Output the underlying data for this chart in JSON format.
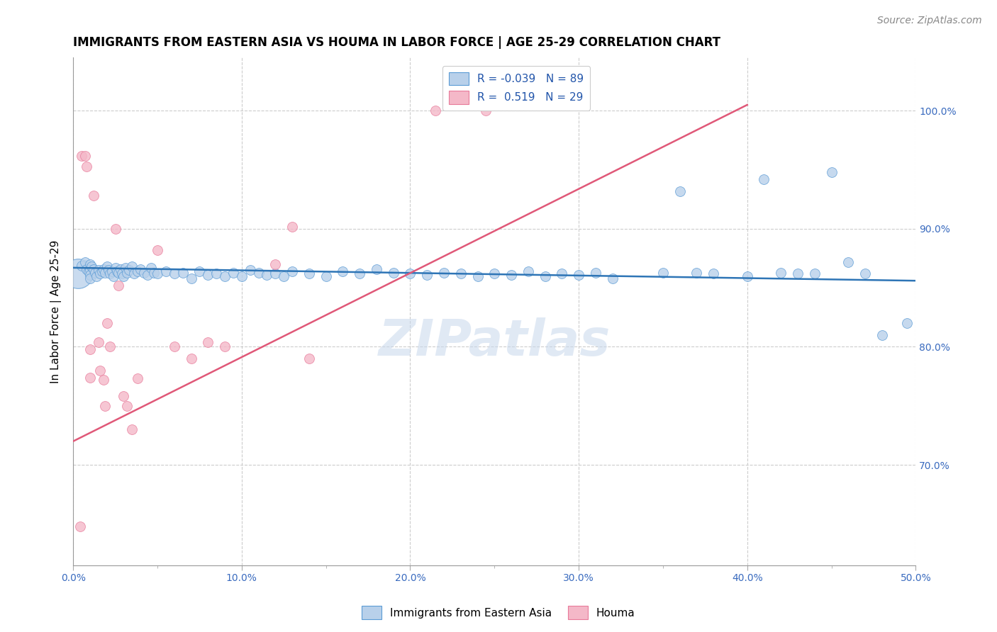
{
  "title": "IMMIGRANTS FROM EASTERN ASIA VS HOUMA IN LABOR FORCE | AGE 25-29 CORRELATION CHART",
  "source": "Source: ZipAtlas.com",
  "ylabel": "In Labor Force | Age 25-29",
  "xlim": [
    0.0,
    0.5
  ],
  "ylim": [
    0.615,
    1.045
  ],
  "xtick_labels": [
    "0.0%",
    "",
    "10.0%",
    "",
    "20.0%",
    "",
    "30.0%",
    "",
    "40.0%",
    "",
    "50.0%"
  ],
  "xtick_values": [
    0.0,
    0.05,
    0.1,
    0.15,
    0.2,
    0.25,
    0.3,
    0.35,
    0.4,
    0.45,
    0.5
  ],
  "ytick_labels": [
    "70.0%",
    "80.0%",
    "90.0%",
    "100.0%"
  ],
  "ytick_values": [
    0.7,
    0.8,
    0.9,
    1.0
  ],
  "legend_label1": "Immigrants from Eastern Asia",
  "legend_label2": "Houma",
  "R1": -0.039,
  "N1": 89,
  "R2": 0.519,
  "N2": 29,
  "blue_color": "#b8d0ea",
  "blue_edge_color": "#5b9bd5",
  "blue_line_color": "#2e75b6",
  "pink_color": "#f4b8c8",
  "pink_edge_color": "#e87a9a",
  "pink_line_color": "#e05878",
  "blue_scatter_x": [
    0.005,
    0.007,
    0.008,
    0.009,
    0.01,
    0.01,
    0.01,
    0.01,
    0.011,
    0.012,
    0.013,
    0.014,
    0.015,
    0.016,
    0.017,
    0.018,
    0.019,
    0.02,
    0.021,
    0.022,
    0.023,
    0.024,
    0.025,
    0.026,
    0.027,
    0.028,
    0.029,
    0.03,
    0.031,
    0.032,
    0.033,
    0.035,
    0.036,
    0.038,
    0.04,
    0.042,
    0.044,
    0.046,
    0.048,
    0.05,
    0.055,
    0.06,
    0.065,
    0.07,
    0.075,
    0.08,
    0.085,
    0.09,
    0.095,
    0.1,
    0.105,
    0.11,
    0.115,
    0.12,
    0.125,
    0.13,
    0.14,
    0.15,
    0.16,
    0.17,
    0.18,
    0.19,
    0.2,
    0.21,
    0.22,
    0.23,
    0.24,
    0.25,
    0.26,
    0.27,
    0.28,
    0.29,
    0.3,
    0.31,
    0.32,
    0.35,
    0.36,
    0.37,
    0.38,
    0.4,
    0.41,
    0.42,
    0.43,
    0.44,
    0.45,
    0.46,
    0.47,
    0.48,
    0.495
  ],
  "blue_scatter_y": [
    0.869,
    0.872,
    0.866,
    0.864,
    0.87,
    0.865,
    0.861,
    0.858,
    0.868,
    0.866,
    0.863,
    0.86,
    0.865,
    0.862,
    0.864,
    0.866,
    0.863,
    0.868,
    0.865,
    0.862,
    0.864,
    0.86,
    0.867,
    0.864,
    0.863,
    0.866,
    0.862,
    0.86,
    0.867,
    0.863,
    0.865,
    0.868,
    0.862,
    0.864,
    0.866,
    0.863,
    0.861,
    0.867,
    0.863,
    0.862,
    0.864,
    0.862,
    0.863,
    0.858,
    0.864,
    0.861,
    0.862,
    0.86,
    0.863,
    0.86,
    0.865,
    0.863,
    0.861,
    0.862,
    0.86,
    0.864,
    0.862,
    0.86,
    0.864,
    0.862,
    0.866,
    0.863,
    0.862,
    0.861,
    0.863,
    0.862,
    0.86,
    0.862,
    0.861,
    0.864,
    0.86,
    0.862,
    0.861,
    0.863,
    0.858,
    0.863,
    0.932,
    0.863,
    0.862,
    0.86,
    0.942,
    0.863,
    0.862,
    0.862,
    0.948,
    0.872,
    0.862,
    0.81,
    0.82
  ],
  "blue_large_dot_x": [
    0.003
  ],
  "blue_large_dot_y": [
    0.862
  ],
  "blue_large_dot_size": 900,
  "pink_scatter_x": [
    0.004,
    0.005,
    0.007,
    0.008,
    0.01,
    0.01,
    0.012,
    0.015,
    0.016,
    0.018,
    0.019,
    0.02,
    0.022,
    0.025,
    0.027,
    0.03,
    0.032,
    0.035,
    0.038,
    0.05,
    0.06,
    0.07,
    0.08,
    0.09,
    0.12,
    0.13,
    0.14,
    0.215,
    0.245
  ],
  "pink_scatter_y": [
    0.648,
    0.962,
    0.962,
    0.953,
    0.798,
    0.774,
    0.928,
    0.804,
    0.78,
    0.772,
    0.75,
    0.82,
    0.8,
    0.9,
    0.852,
    0.758,
    0.75,
    0.73,
    0.773,
    0.882,
    0.8,
    0.79,
    0.804,
    0.8,
    0.87,
    0.902,
    0.79,
    1.0,
    1.0
  ],
  "blue_line_x": [
    0.0,
    0.5
  ],
  "blue_line_y": [
    0.867,
    0.856
  ],
  "pink_line_x": [
    0.0,
    0.4
  ],
  "pink_line_y": [
    0.72,
    1.005
  ],
  "watermark": "ZIPatlas",
  "title_fontsize": 12,
  "label_fontsize": 11,
  "tick_fontsize": 10,
  "source_fontsize": 10
}
